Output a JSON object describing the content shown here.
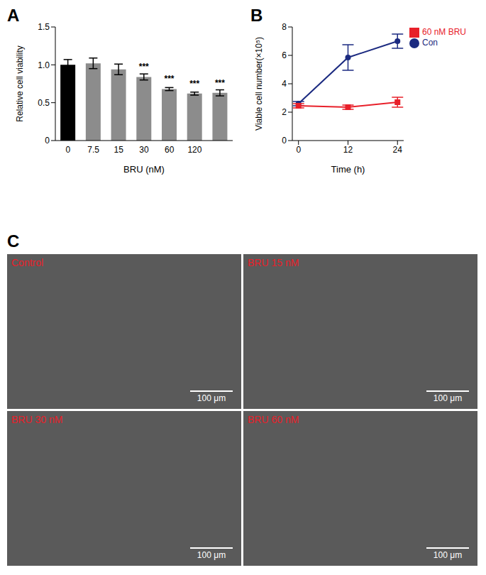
{
  "chart_data": [
    {
      "panel_label": "A",
      "type": "bar",
      "categories": [
        "0",
        "7.5",
        "15",
        "30",
        "60",
        "120",
        null
      ],
      "values": [
        1.0,
        1.02,
        0.94,
        0.84,
        0.68,
        0.62,
        0.63
      ],
      "errors": [
        0.07,
        0.07,
        0.07,
        0.04,
        0.02,
        0.02,
        0.04
      ],
      "colors": [
        "#000000",
        "#8c8c8c",
        "#8c8c8c",
        "#8c8c8c",
        "#8c8c8c",
        "#8c8c8c",
        "#8c8c8c"
      ],
      "x_label": "BRU (nM)",
      "y_label": "Relative cell viability",
      "ylim": [
        0,
        1.5
      ],
      "yticks": [
        0,
        0.5,
        {
          "value": 1,
          "label": "1.0"
        },
        1.5
      ],
      "annotations": [
        {
          "index": 3,
          "text": "***"
        },
        {
          "index": 4,
          "text": "***"
        },
        {
          "index": 5,
          "text": "***"
        },
        {
          "index": 6,
          "text": "***"
        }
      ]
    },
    {
      "panel_label": "B",
      "type": "line",
      "x": [
        0,
        12,
        24
      ],
      "xlim": [
        -1.5,
        25.5
      ],
      "xticks": [
        0,
        12,
        24
      ],
      "ylim": [
        0,
        8
      ],
      "yticks": [
        0,
        2,
        4,
        6,
        8
      ],
      "x_label": "Time (h)",
      "y_label": "Viable cell number(×10⁵)",
      "legend": "right",
      "series": [
        {
          "name": "Con",
          "color": "#1b2a80",
          "marker": "circle",
          "values": [
            2.6,
            5.85,
            7.0
          ],
          "errors": [
            0.15,
            0.9,
            0.5
          ]
        },
        {
          "name": "60 nM BRU",
          "color": "#e8202a",
          "marker": "square",
          "values": [
            2.45,
            2.35,
            2.7
          ],
          "errors": [
            0.15,
            0.15,
            0.35
          ]
        }
      ]
    }
  ],
  "images": {
    "panel_label": "C",
    "panels": [
      {
        "label": "Control",
        "scale_bar": "100 μm"
      },
      {
        "label": "BRU 15 nM",
        "scale_bar": "100 μm"
      },
      {
        "label": "BRU 30 nM",
        "scale_bar": "100 μm"
      },
      {
        "label": "BRU 60 nM",
        "scale_bar": "100 μm"
      }
    ]
  }
}
